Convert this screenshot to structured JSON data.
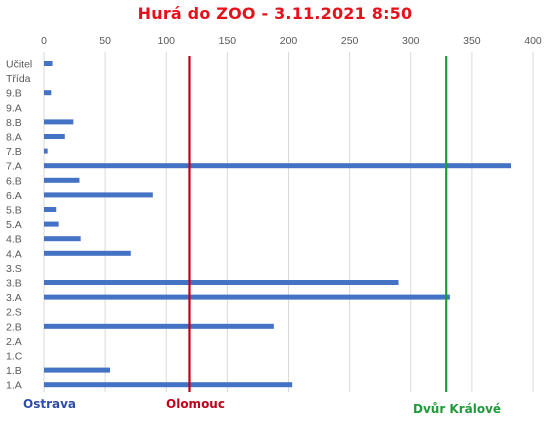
{
  "chart_data": {
    "type": "bar",
    "orientation": "horizontal",
    "title": "Hurá do ZOO - 3.11.2021 8:50",
    "xlim": [
      0,
      400
    ],
    "x_ticks": [
      0,
      50,
      100,
      150,
      200,
      250,
      300,
      350,
      400
    ],
    "x_axis_position": "top",
    "grid": true,
    "categories": [
      "Učitel",
      "Třída",
      "9.B",
      "9.A",
      "8.B",
      "8.A",
      "7.B",
      "7.A",
      "6.B",
      "6.A",
      "5.B",
      "5.A",
      "4.B",
      "4.A",
      "3.S",
      "3.B",
      "3.A",
      "2.S",
      "2.B",
      "2.A",
      "1.C",
      "1.B",
      "1.A"
    ],
    "values": [
      7,
      0,
      6,
      0,
      24,
      17,
      3,
      382,
      29,
      89,
      10,
      12,
      30,
      71,
      0,
      290,
      332,
      0,
      188,
      0,
      0,
      54,
      203
    ],
    "reference_lines": [
      {
        "label": "Ostrava",
        "value": 0,
        "color": "#2E4CA8",
        "line": false
      },
      {
        "label": "Olomouc",
        "value": 119,
        "color": "#C0001A",
        "line": true
      },
      {
        "label": "Dvůr Králové",
        "value": 329,
        "color": "#1F9A3A",
        "line": true
      }
    ],
    "colors": {
      "bar": "#4472C4",
      "grid": "#D9D9D9",
      "title": "#E8111B",
      "tick_text": "#595959"
    }
  }
}
